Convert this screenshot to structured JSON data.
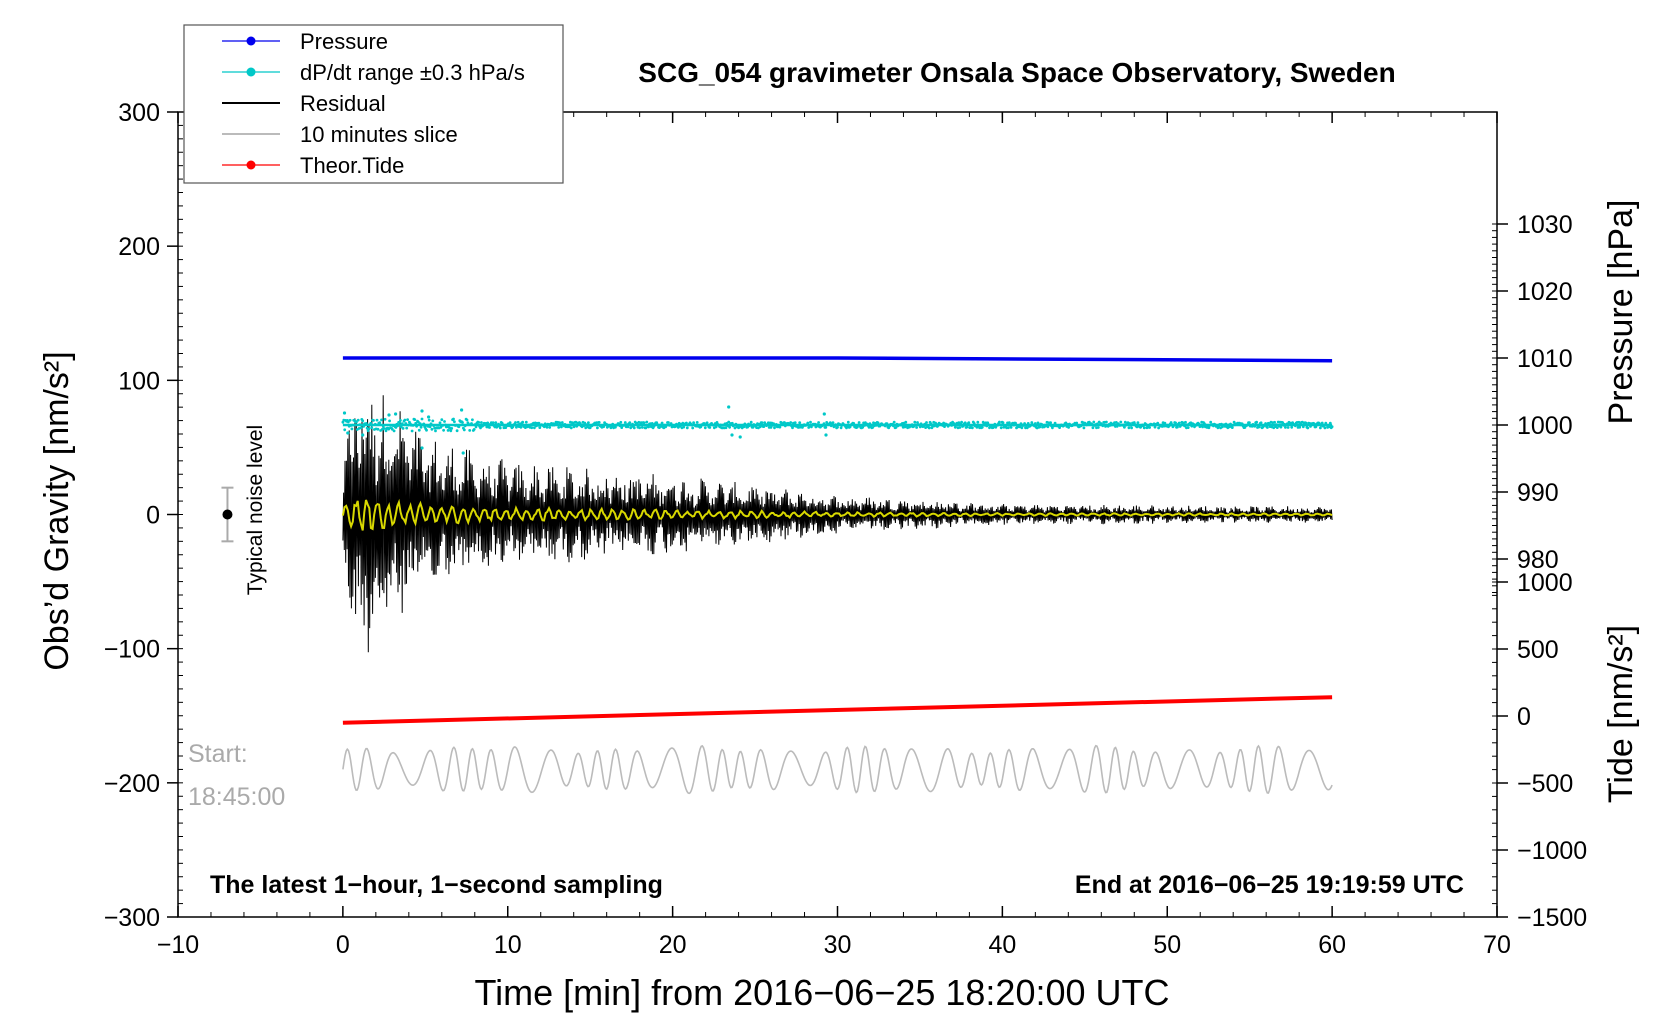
{
  "chart_data": {
    "type": "line",
    "title": "SCG_054 gravimeter Onsala Space Observatory, Sweden",
    "xlabel": "Time [min] from 2016−06−25 18:20:00 UTC",
    "ylabel_left": "Obs’d Gravity [nm/s²]",
    "ylabel_pressure": "Pressure [hPa]",
    "ylabel_tide": "Tide [nm/s²]",
    "xlim": [
      -10,
      70
    ],
    "ylim": [
      -300,
      300
    ],
    "pressure_lim": [
      970,
      1030
    ],
    "tide_lim": [
      -1500,
      1000
    ],
    "x_ticks": [
      "−10",
      "0",
      "10",
      "20",
      "30",
      "40",
      "50",
      "60",
      "70"
    ],
    "x_tick_values": [
      -10,
      0,
      10,
      20,
      30,
      40,
      50,
      60,
      70
    ],
    "y_ticks": [
      "300",
      "200",
      "100",
      "0",
      "−100",
      "−200",
      "−300"
    ],
    "y_tick_values": [
      300,
      200,
      100,
      0,
      -100,
      -200,
      -300
    ],
    "pressure_ticks": [
      "1030",
      "1020",
      "1010",
      "1000",
      "990",
      "980"
    ],
    "pressure_tick_values": [
      1030,
      1020,
      1010,
      1000,
      990,
      980
    ],
    "tide_ticks": [
      "1000",
      "500",
      "0",
      "−500",
      "−1000",
      "−1500"
    ],
    "tide_tick_values": [
      1000,
      500,
      0,
      -500,
      -1000,
      -1500
    ],
    "legend": [
      {
        "label": "Pressure",
        "color": "#0000ee",
        "marker": true
      },
      {
        "label": "dP/dt range ±0.3 hPa/s",
        "color": "#00c8c8",
        "marker": true
      },
      {
        "label": "Residual",
        "color": "#000000",
        "marker": false
      },
      {
        "label": "10 minutes slice",
        "color": "#bbbbbb",
        "marker": false
      },
      {
        "label": "Theor.Tide",
        "color": "#ff0000",
        "marker": true
      }
    ],
    "series": [
      {
        "name": "Pressure",
        "axis": "pressure",
        "color": "#0000ee",
        "x": [
          0,
          30,
          60
        ],
        "values": [
          1010,
          1010,
          1009.6
        ]
      },
      {
        "name": "dP/dt range ±0.3 hPa/s",
        "axis": "pressure",
        "color": "#00c8c8",
        "x": [
          0,
          60
        ],
        "values": [
          1000,
          1000
        ]
      },
      {
        "name": "Theor.Tide",
        "axis": "tide",
        "color": "#ff0000",
        "x": [
          0,
          60
        ],
        "values": [
          -50,
          140
        ]
      },
      {
        "name": "Residual",
        "axis": "gravity",
        "color": "#000000",
        "amplitude_envelope": {
          "x": [
            0,
            1,
            2,
            5,
            10,
            20,
            30,
            40,
            60
          ],
          "amplitude": [
            50,
            110,
            100,
            60,
            40,
            30,
            15,
            8,
            6
          ]
        }
      },
      {
        "name": "10 minutes slice",
        "axis": "gravity",
        "color": "#bbbbbb",
        "x": [
          0,
          60
        ],
        "baseline": -190,
        "amplitude": 18
      }
    ],
    "annotations": {
      "noise_label": "Typical noise level",
      "noise_center": 0,
      "noise_halfwidth": 20,
      "start_label": "Start:",
      "start_time": "18:45:00",
      "bottom_left": "The latest 1−hour, 1−second sampling",
      "bottom_right": "End at 2016−06−25 19:19:59 UTC"
    }
  }
}
